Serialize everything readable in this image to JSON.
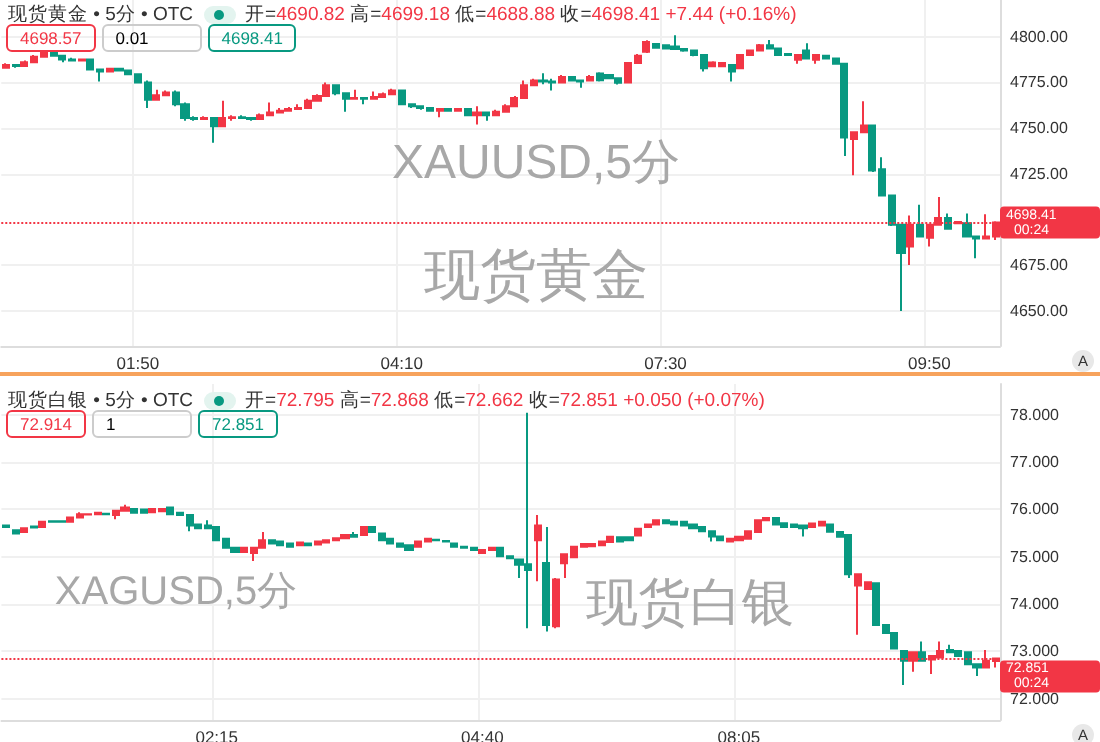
{
  "chart_data": [
    {
      "type": "candlestick",
      "title": "现货黄金 • 5分 • OTC",
      "subtitle": "开=4690.82 高=4699.18 低=4688.88 收=4698.41 +7.44 (+0.16%)",
      "annotations": [
        "4698.57",
        "0.01",
        "4698.41",
        "00:24",
        "XAUUSD,5分",
        "现货黄金",
        "A"
      ],
      "colors": [
        "#f23645",
        "#089981",
        "#f23645",
        "#f23645",
        "#f23645",
        "#089981",
        "#089981",
        "#089981",
        "#f23645",
        "#089981",
        "#089981",
        "#f23645",
        "#089981",
        "#089981",
        "#089981",
        "#089981",
        "#f23645",
        "#f23645",
        "#089981",
        "#089981",
        "#089981",
        "#f23645",
        "#089981",
        "#f23645",
        "#f23645",
        "#089981",
        "#089981",
        "#f23645",
        "#f23645",
        "#f23645",
        "#f23645",
        "#f23645",
        "#f23645",
        "#f23645",
        "#f23645",
        "#089981",
        "#089981",
        "#f23645",
        "#089981",
        "#f23645",
        "#f23645",
        "#f23645",
        "#089981",
        "#089981",
        "#089981",
        "#089981",
        "#f23645",
        "#089981",
        "#f23645",
        "#089981",
        "#f23645",
        "#089981",
        "#f23645",
        "#f23645",
        "#f23645",
        "#f23645",
        "#f23645",
        "#089981",
        "#089981",
        "#f23645",
        "#089981",
        "#089981",
        "#f23645",
        "#089981",
        "#089981",
        "#089981",
        "#f23645",
        "#f23645",
        "#f23645",
        "#089981",
        "#089981",
        "#089981",
        "#089981",
        "#089981",
        "#089981",
        "#f23645",
        "#f23645",
        "#089981",
        "#f23645",
        "#f23645",
        "#f23645",
        "#089981",
        "#089981",
        "#089981",
        "#f23645",
        "#089981",
        "#f23645",
        "#089981",
        "#089981",
        "#089981",
        "#f23645",
        "#f23645",
        "#089981",
        "#089981",
        "#089981",
        "#089981",
        "#f23645",
        "#089981",
        "#f23645",
        "#f23645",
        "#089981",
        "#f23645",
        "#089981",
        "#089981",
        "#f23645",
        "#f23645"
      ],
      "ylim": [
        4631,
        4820
      ],
      "yticks": [
        {
          "value": 4650,
          "label": "4650.00"
        },
        {
          "value": 4675,
          "label": "4675.00"
        },
        {
          "value": 4725,
          "label": "4725.00"
        },
        {
          "value": 4750,
          "label": "4750.00"
        },
        {
          "value": 4775,
          "label": "4775.00"
        },
        {
          "value": 4800,
          "label": "4800.00"
        }
      ],
      "grid": true,
      "ref_lines": [
        {
          "axis": "y",
          "value": 4698.41,
          "label": "4698.41",
          "color": "#f23645",
          "line_style": "dotted"
        }
      ],
      "categories": [
        null,
        null,
        null,
        null,
        null,
        null,
        null,
        null,
        null,
        null,
        null,
        null,
        null,
        null,
        "01:50",
        null,
        null,
        null,
        null,
        null,
        null,
        null,
        null,
        null,
        null,
        null,
        null,
        null,
        null,
        null,
        null,
        null,
        null,
        null,
        null,
        null,
        null,
        null,
        null,
        null,
        null,
        null,
        "04:10",
        null,
        null,
        null,
        null,
        null,
        null,
        null,
        null,
        null,
        null,
        null,
        null,
        null,
        null,
        null,
        null,
        null,
        null,
        null,
        null,
        null,
        null,
        null,
        null,
        null,
        null,
        null,
        "07:30",
        null,
        null,
        null,
        null,
        null,
        null,
        null,
        null,
        null,
        null,
        null,
        null,
        null,
        null,
        null,
        null,
        null,
        null,
        null,
        null,
        null,
        null,
        null,
        null,
        null,
        null,
        null,
        "09:50",
        null,
        null,
        null,
        null,
        null,
        null,
        null
      ],
      "ohlc": [
        [
          4783,
          4785.5,
          4782.5,
          4784.5
        ],
        [
          4784.5,
          4785,
          4783,
          4784
        ],
        [
          4784,
          4787,
          4783.5,
          4786
        ],
        [
          4786,
          4790,
          4785.5,
          4789
        ],
        [
          4789,
          4792,
          4788.5,
          4791
        ],
        [
          4791,
          4791.5,
          4789,
          4789.5
        ],
        [
          4789.5,
          4790,
          4786,
          4787.5
        ],
        [
          4787.5,
          4788.5,
          4786.5,
          4787
        ],
        [
          4787,
          4788,
          4786.5,
          4787.5
        ],
        [
          4787.5,
          4788,
          4781.5,
          4782
        ],
        [
          4782,
          4782.5,
          4775.5,
          4781
        ],
        [
          4781,
          4783,
          4780.5,
          4782.5
        ],
        [
          4782.5,
          4783,
          4781,
          4781.5
        ],
        [
          4781.5,
          4782,
          4779,
          4779.5
        ],
        [
          4779.5,
          4780,
          4774.5,
          4775
        ],
        [
          4775,
          4776,
          4761,
          4765.5
        ],
        [
          4765.5,
          4771,
          4765,
          4768
        ],
        [
          4768,
          4770.5,
          4767.5,
          4769.5
        ],
        [
          4769.5,
          4770.5,
          4762,
          4763
        ],
        [
          4763,
          4764,
          4754,
          4755.5
        ],
        [
          4755.5,
          4756.5,
          4754,
          4755
        ],
        [
          4755,
          4756.5,
          4754.5,
          4755.5
        ],
        [
          4755.5,
          4756,
          4742,
          4751
        ],
        [
          4751,
          4765,
          4750.5,
          4755.5
        ],
        [
          4755.5,
          4757,
          4754,
          4756
        ],
        [
          4756,
          4757,
          4755,
          4755.5
        ],
        [
          4755.5,
          4756,
          4754,
          4755
        ],
        [
          4755,
          4758,
          4754.5,
          4757
        ],
        [
          4757,
          4764,
          4756.5,
          4758.5
        ],
        [
          4758.5,
          4761,
          4758,
          4759.5
        ],
        [
          4759.5,
          4761.5,
          4759,
          4760.5
        ],
        [
          4760.5,
          4763,
          4760,
          4761
        ],
        [
          4761,
          4766,
          4760.5,
          4765
        ],
        [
          4765,
          4768.5,
          4764.5,
          4767.5
        ],
        [
          4767.5,
          4775,
          4767,
          4773.5
        ],
        [
          4773.5,
          4774,
          4768,
          4769
        ],
        [
          4769,
          4769.5,
          4759,
          4766
        ],
        [
          4766,
          4771,
          4765.5,
          4766.5
        ],
        [
          4766.5,
          4767,
          4763,
          4766
        ],
        [
          4766,
          4770,
          4765.5,
          4767
        ],
        [
          4767,
          4769.5,
          4766.5,
          4768.5
        ],
        [
          4768.5,
          4771.5,
          4768,
          4770.5
        ],
        [
          4770.5,
          4771,
          4762.5,
          4763
        ],
        [
          4763,
          4763.5,
          4761,
          4762
        ],
        [
          4762,
          4762.5,
          4760,
          4761
        ],
        [
          4761,
          4761.5,
          4759,
          4759.5
        ],
        [
          4759.5,
          4761,
          4756,
          4760.5
        ],
        [
          4760.5,
          4761,
          4759,
          4759.5
        ],
        [
          4759.5,
          4761,
          4759,
          4760.5
        ],
        [
          4760.5,
          4761,
          4756.5,
          4757
        ],
        [
          4757,
          4762,
          4752,
          4758.5
        ],
        [
          4758.5,
          4759,
          4754,
          4757
        ],
        [
          4757,
          4760,
          4756.5,
          4759
        ],
        [
          4759,
          4763,
          4758.5,
          4762
        ],
        [
          4762,
          4767.5,
          4761.5,
          4766.5
        ],
        [
          4766.5,
          4776,
          4766,
          4773.5
        ],
        [
          4773.5,
          4777,
          4773,
          4776
        ],
        [
          4776,
          4780,
          4774,
          4775.5
        ],
        [
          4775.5,
          4777,
          4770.5,
          4775
        ],
        [
          4775,
          4779,
          4774.5,
          4778
        ],
        [
          4778,
          4778.5,
          4775.5,
          4776
        ],
        [
          4776,
          4776.5,
          4772,
          4775.5
        ],
        [
          4776,
          4779,
          4775.5,
          4778
        ],
        [
          4779.8,
          4780.5,
          4775.5,
          4776.2
        ],
        [
          4779,
          4779.5,
          4776.8,
          4777.3
        ],
        [
          4777.3,
          4777.8,
          4773.8,
          4774.8
        ],
        [
          4775,
          4786,
          4774.5,
          4785.6
        ],
        [
          4785.6,
          4790.5,
          4785,
          4789.6
        ],
        [
          4791.7,
          4798,
          4791,
          4797.1
        ],
        [
          4796,
          4796.5,
          4793.5,
          4793.9
        ],
        [
          4795.3,
          4795.8,
          4793,
          4793.5
        ],
        [
          4794.6,
          4800.7,
          4792.8,
          4793.2
        ],
        [
          4793.2,
          4793.6,
          4791.8,
          4792.4
        ],
        [
          4792.4,
          4792.8,
          4789.3,
          4789.9
        ],
        [
          4789.9,
          4790.3,
          4780.9,
          4782.7
        ],
        [
          4783.8,
          4786.5,
          4783.2,
          4785.9
        ],
        [
          4783.8,
          4786.2,
          4783.2,
          4785.6
        ],
        [
          4784.5,
          4785,
          4775.5,
          4780.9
        ],
        [
          4782.7,
          4790.4,
          4782.2,
          4789.9
        ],
        [
          4789.9,
          4793,
          4789.5,
          4792.4
        ],
        [
          4792.4,
          4796,
          4792,
          4795.3
        ],
        [
          4795.3,
          4798.2,
          4793,
          4793.5
        ],
        [
          4793.5,
          4794,
          4789.4,
          4789.9
        ],
        [
          4790.5,
          4791,
          4789.4,
          4789.9
        ],
        [
          4787.4,
          4790.4,
          4785.2,
          4789.9
        ],
        [
          4792.4,
          4796.4,
          4787.6,
          4788.1
        ],
        [
          4787.4,
          4790.4,
          4785.2,
          4789.9
        ],
        [
          4789.6,
          4790,
          4787.6,
          4788.1
        ],
        [
          4788.1,
          4788.5,
          4784.8,
          4785.2
        ],
        [
          4785.2,
          4785.6,
          4734.8,
          4744.9
        ],
        [
          4744.1,
          4748.2,
          4724.3,
          4747.7
        ],
        [
          4747.7,
          4764.7,
          4747.2,
          4751.4
        ],
        [
          4751.4,
          4752,
          4726,
          4726.8
        ],
        [
          4727.6,
          4734.1,
          4712.6,
          4713.2
        ],
        [
          4713.2,
          4713.8,
          4696.5,
          4697.3
        ],
        [
          4697.3,
          4697.8,
          4650.1,
          4681.8
        ],
        [
          4685.4,
          4702.3,
          4675.3,
          4697.3
        ],
        [
          4697.3,
          4708.1,
          4690.3,
          4690.8
        ],
        [
          4690.1,
          4697.8,
          4685.4,
          4697.3
        ],
        [
          4697.3,
          4712.4,
          4696.8,
          4700.9
        ],
        [
          4700.9,
          4703.4,
          4694.6,
          4695.1
        ],
        [
          4698,
          4699.2,
          4697.5,
          4698.7
        ],
        [
          4698,
          4703.4,
          4690.3,
          4690.8
        ],
        [
          4690.8,
          4691.2,
          4678.9,
          4689.7
        ],
        [
          4689.7,
          4703,
          4689.2,
          4690.8
        ],
        [
          4690.82,
          4699.18,
          4688.88,
          4698.41
        ]
      ]
    },
    {
      "type": "candlestick",
      "title": "现货白银 • 5分 • OTC",
      "subtitle": "开=72.795 高=72.868 低=72.662 收=72.851 +0.050 (+0.07%)",
      "annotations": [
        "72.914",
        "1",
        "72.851",
        "00:24",
        "XAGUSD,5分",
        "现货白银",
        "A"
      ],
      "colors": [
        "#089981",
        "#089981",
        "#f23645",
        "#089981",
        "#f23645",
        "#089981",
        "#089981",
        "#f23645",
        "#f23645",
        "#f23645",
        "#f23645",
        "#089981",
        "#f23645",
        "#f23645",
        "#089981",
        "#089981",
        "#f23645",
        "#f23645",
        "#089981",
        "#089981",
        "#089981",
        "#089981",
        "#089981",
        "#089981",
        "#089981",
        "#089981",
        "#f23645",
        "#f23645",
        "#f23645",
        "#089981",
        "#089981",
        "#089981",
        "#f23645",
        "#089981",
        "#f23645",
        "#f23645",
        "#f23645",
        "#f23645",
        "#089981",
        "#f23645",
        "#089981",
        "#089981",
        "#089981",
        "#089981",
        "#089981",
        "#f23645",
        "#f23645",
        "#089981",
        "#089981",
        "#089981",
        "#089981",
        "#089981",
        "#f23645",
        "#f23645",
        "#089981",
        "#089981",
        "#089981",
        "#089981",
        "#f23645",
        "#089981",
        "#f23645",
        "#f23645",
        "#f23645",
        "#f23645",
        "#f23645",
        "#f23645",
        "#f23645",
        "#089981",
        "#089981",
        "#f23645",
        "#f23645",
        "#f23645",
        "#089981",
        "#089981",
        "#089981",
        "#089981",
        "#089981",
        "#089981",
        "#089981",
        "#f23645",
        "#f23645",
        "#f23645",
        "#f23645",
        "#f23645",
        "#089981",
        "#089981",
        "#089981",
        "#089981",
        "#f23645",
        "#f23645",
        "#089981",
        "#089981",
        "#089981",
        "#f23645",
        "#f23645",
        "#089981",
        "#089981",
        "#089981",
        "#089981",
        "#f23645",
        "#089981",
        "#f23645",
        "#f23645",
        "#089981",
        "#089981",
        "#089981",
        "#089981",
        "#f23645",
        "#f23645"
      ],
      "ylim": [
        71.55,
        78.65
      ],
      "yticks": [
        {
          "value": 72,
          "label": "72.000"
        },
        {
          "value": 73,
          "label": "73.000"
        },
        {
          "value": 74,
          "label": "74.000"
        },
        {
          "value": 75,
          "label": "75.000"
        },
        {
          "value": 76,
          "label": "76.000"
        },
        {
          "value": 77,
          "label": "77.000"
        },
        {
          "value": 78,
          "label": "78.000"
        }
      ],
      "grid": true,
      "ref_lines": [
        {
          "axis": "y",
          "value": 72.851,
          "label": "72.851",
          "color": "#f23645",
          "line_style": "dotted"
        }
      ],
      "categories": [
        null,
        null,
        null,
        null,
        null,
        null,
        null,
        null,
        null,
        null,
        null,
        null,
        null,
        null,
        null,
        null,
        null,
        null,
        null,
        null,
        null,
        null,
        null,
        "02:15",
        null,
        null,
        null,
        null,
        null,
        null,
        null,
        null,
        null,
        null,
        null,
        null,
        null,
        null,
        null,
        null,
        null,
        null,
        null,
        null,
        null,
        null,
        null,
        null,
        null,
        null,
        null,
        null,
        "04:40",
        null,
        null,
        null,
        null,
        null,
        null,
        null,
        null,
        null,
        null,
        null,
        null,
        null,
        null,
        null,
        null,
        null,
        null,
        null,
        null,
        null,
        null,
        null,
        null,
        null,
        null,
        null,
        "08:05",
        null,
        null,
        null,
        null,
        null,
        null,
        null,
        null,
        null,
        null,
        null,
        null,
        null,
        null,
        null,
        null,
        null,
        null,
        null,
        null,
        null,
        null,
        null,
        null,
        null,
        null,
        null,
        null
      ],
      "ohlc": [
        [
          75.66,
          75.68,
          75.61,
          75.63
        ],
        [
          75.56,
          75.57,
          75.47,
          75.49
        ],
        [
          75.52,
          75.61,
          75.5,
          75.6
        ],
        [
          75.64,
          75.65,
          75.61,
          75.62
        ],
        [
          75.63,
          75.75,
          75.62,
          75.74
        ],
        [
          75.75,
          75.76,
          75.73,
          75.74
        ],
        [
          75.75,
          75.76,
          75.73,
          75.74
        ],
        [
          75.74,
          75.84,
          75.73,
          75.83
        ],
        [
          75.83,
          75.94,
          75.82,
          75.9
        ],
        [
          75.89,
          75.92,
          75.88,
          75.9
        ],
        [
          75.9,
          75.94,
          75.89,
          75.93
        ],
        [
          75.91,
          75.92,
          75.89,
          75.9
        ],
        [
          75.88,
          75.98,
          75.79,
          75.97
        ],
        [
          75.97,
          76.1,
          75.96,
          76.04
        ],
        [
          76.01,
          76.02,
          75.92,
          75.93
        ],
        [
          76.0,
          76.01,
          75.92,
          75.93
        ],
        [
          75.94,
          76.02,
          75.93,
          76.01
        ],
        [
          75.96,
          76.02,
          75.95,
          76.01
        ],
        [
          76.04,
          76.05,
          75.89,
          75.9
        ],
        [
          75.93,
          75.94,
          75.86,
          75.88
        ],
        [
          75.88,
          75.89,
          75.54,
          75.66
        ],
        [
          75.68,
          75.69,
          75.59,
          75.6
        ],
        [
          75.66,
          75.77,
          75.59,
          75.6
        ],
        [
          75.63,
          75.64,
          75.34,
          75.35
        ],
        [
          75.38,
          75.39,
          75.18,
          75.19
        ],
        [
          75.19,
          75.2,
          75.09,
          75.1
        ],
        [
          75.1,
          75.2,
          75.09,
          75.19
        ],
        [
          75.08,
          75.2,
          74.91,
          75.19
        ],
        [
          75.19,
          75.52,
          75.18,
          75.35
        ],
        [
          75.35,
          75.36,
          75.27,
          75.28
        ],
        [
          75.32,
          75.33,
          75.23,
          75.24
        ],
        [
          75.28,
          75.29,
          75.2,
          75.21
        ],
        [
          75.24,
          75.31,
          75.23,
          75.3
        ],
        [
          75.28,
          75.29,
          75.23,
          75.24
        ],
        [
          75.26,
          75.33,
          75.25,
          75.32
        ],
        [
          75.3,
          75.36,
          75.29,
          75.35
        ],
        [
          75.35,
          75.4,
          75.34,
          75.39
        ],
        [
          75.39,
          75.47,
          75.38,
          75.46
        ],
        [
          75.46,
          75.52,
          75.41,
          75.42
        ],
        [
          75.46,
          75.64,
          75.45,
          75.63
        ],
        [
          75.63,
          75.64,
          75.51,
          75.52
        ],
        [
          75.49,
          75.5,
          75.34,
          75.35
        ],
        [
          75.38,
          75.39,
          75.27,
          75.28
        ],
        [
          75.28,
          75.29,
          75.2,
          75.21
        ],
        [
          75.24,
          75.25,
          75.13,
          75.14
        ],
        [
          75.21,
          75.33,
          75.2,
          75.32
        ],
        [
          75.32,
          75.39,
          75.31,
          75.38
        ],
        [
          75.36,
          75.37,
          75.34,
          75.35
        ],
        [
          75.33,
          75.34,
          75.31,
          75.32
        ],
        [
          75.28,
          75.29,
          75.2,
          75.21
        ],
        [
          75.21,
          75.22,
          75.18,
          75.19
        ],
        [
          75.19,
          75.2,
          75.13,
          75.14
        ],
        [
          75.08,
          75.15,
          75.07,
          75.14
        ],
        [
          75.14,
          75.2,
          75.13,
          75.19
        ],
        [
          75.19,
          75.2,
          75.0,
          75.01
        ],
        [
          75.01,
          75.02,
          74.96,
          74.97
        ],
        [
          74.94,
          74.95,
          74.55,
          74.83
        ],
        [
          74.84,
          78.04,
          73.49,
          74.72
        ],
        [
          75.35,
          75.88,
          74.48,
          75.66
        ],
        [
          74.87,
          75.63,
          73.42,
          73.56
        ],
        [
          73.53,
          74.55,
          73.49,
          74.52
        ],
        [
          74.86,
          75.06,
          74.55,
          75.05
        ],
        [
          74.99,
          75.22,
          74.98,
          75.21
        ],
        [
          75.21,
          75.28,
          75.2,
          75.27
        ],
        [
          75.22,
          75.28,
          75.21,
          75.27
        ],
        [
          75.24,
          75.33,
          75.23,
          75.32
        ],
        [
          75.31,
          75.43,
          75.3,
          75.42
        ],
        [
          75.41,
          75.42,
          75.31,
          75.32
        ],
        [
          75.41,
          75.42,
          75.34,
          75.35
        ],
        [
          75.45,
          75.6,
          75.44,
          75.59
        ],
        [
          75.63,
          75.69,
          75.62,
          75.68
        ],
        [
          75.68,
          75.78,
          75.67,
          75.77
        ],
        [
          75.77,
          75.78,
          75.7,
          75.71
        ],
        [
          75.74,
          75.75,
          75.67,
          75.68
        ],
        [
          75.74,
          75.75,
          75.65,
          75.66
        ],
        [
          75.68,
          75.69,
          75.59,
          75.6
        ],
        [
          75.63,
          75.64,
          75.53,
          75.54
        ],
        [
          75.54,
          75.55,
          75.32,
          75.43
        ],
        [
          75.43,
          75.44,
          75.34,
          75.35
        ],
        [
          75.32,
          75.39,
          75.31,
          75.38
        ],
        [
          75.35,
          75.43,
          75.34,
          75.42
        ],
        [
          75.38,
          75.55,
          75.37,
          75.54
        ],
        [
          75.52,
          75.78,
          75.51,
          75.77
        ],
        [
          75.77,
          75.83,
          75.76,
          75.82
        ],
        [
          75.82,
          75.83,
          75.67,
          75.68
        ],
        [
          75.71,
          75.72,
          75.62,
          75.63
        ],
        [
          75.68,
          75.69,
          75.62,
          75.63
        ],
        [
          75.66,
          75.67,
          75.43,
          75.6
        ],
        [
          75.63,
          75.71,
          75.62,
          75.7
        ],
        [
          75.66,
          75.75,
          75.65,
          75.74
        ],
        [
          75.68,
          75.69,
          75.52,
          75.53
        ],
        [
          75.52,
          75.53,
          75.41,
          75.42
        ],
        [
          75.46,
          75.47,
          74.55,
          74.63
        ],
        [
          74.39,
          74.64,
          73.35,
          74.63
        ],
        [
          74.32,
          74.47,
          74.31,
          74.46
        ],
        [
          74.44,
          74.45,
          73.55,
          73.56
        ],
        [
          73.56,
          73.57,
          73.38,
          73.39
        ],
        [
          73.39,
          73.4,
          73.05,
          73.06
        ],
        [
          73.01,
          73.02,
          72.29,
          72.8
        ],
        [
          72.8,
          72.99,
          72.57,
          72.98
        ],
        [
          72.98,
          73.21,
          72.79,
          72.8
        ],
        [
          72.83,
          72.91,
          72.52,
          72.9
        ],
        [
          72.87,
          73.21,
          72.86,
          73.01
        ],
        [
          73.03,
          73.14,
          72.97,
          72.98
        ],
        [
          73.01,
          73.02,
          72.89,
          72.9
        ],
        [
          72.98,
          72.99,
          72.72,
          72.73
        ],
        [
          72.73,
          72.74,
          72.48,
          72.66
        ],
        [
          72.66,
          73.03,
          72.65,
          72.8
        ],
        [
          72.795,
          72.868,
          72.662,
          72.851
        ]
      ]
    }
  ]
}
